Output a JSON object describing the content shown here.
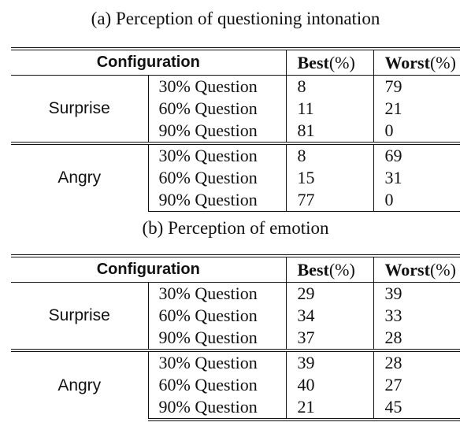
{
  "tables": [
    {
      "caption": "(a) Perception of questioning intonation",
      "headers": {
        "configuration": "Configuration",
        "best_label": "Best",
        "best_unit": "(%)",
        "worst_label": "Worst",
        "worst_unit": "(%)"
      },
      "groups": [
        {
          "name": "Surprise",
          "rows": [
            {
              "config": "30% Question",
              "best": "8",
              "worst": "79"
            },
            {
              "config": "60% Question",
              "best": "11",
              "worst": "21"
            },
            {
              "config": "90% Question",
              "best": "81",
              "worst": "0"
            }
          ]
        },
        {
          "name": "Angry",
          "rows": [
            {
              "config": "30% Question",
              "best": "8",
              "worst": "69"
            },
            {
              "config": "60% Question",
              "best": "15",
              "worst": "31"
            },
            {
              "config": "90% Question",
              "best": "77",
              "worst": "0"
            }
          ]
        }
      ]
    },
    {
      "caption": "(b) Perception of emotion",
      "headers": {
        "configuration": "Configuration",
        "best_label": "Best",
        "best_unit": "(%)",
        "worst_label": "Worst",
        "worst_unit": "(%)"
      },
      "groups": [
        {
          "name": "Surprise",
          "rows": [
            {
              "config": "30% Question",
              "best": "29",
              "worst": "39"
            },
            {
              "config": "60% Question",
              "best": "34",
              "worst": "33"
            },
            {
              "config": "90% Question",
              "best": "37",
              "worst": "28"
            }
          ]
        },
        {
          "name": "Angry",
          "rows": [
            {
              "config": "30% Question",
              "best": "39",
              "worst": "28"
            },
            {
              "config": "60% Question",
              "best": "40",
              "worst": "27"
            },
            {
              "config": "90% Question",
              "best": "21",
              "worst": "45"
            }
          ]
        }
      ]
    }
  ]
}
